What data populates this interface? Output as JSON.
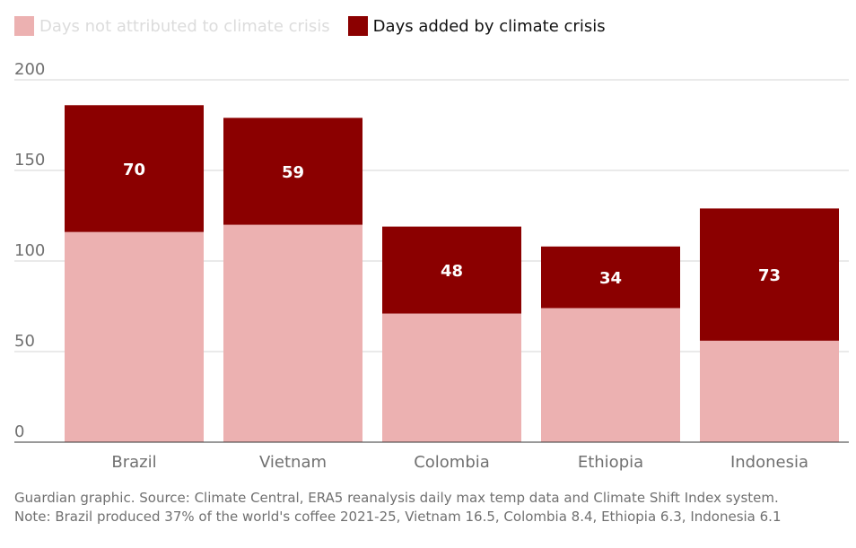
{
  "chart_data": {
    "type": "bar",
    "stacked": true,
    "categories": [
      "Brazil",
      "Vietnam",
      "Colombia",
      "Ethiopia",
      "Indonesia"
    ],
    "series": [
      {
        "name": "Days not attributed to climate crisis",
        "values": [
          116,
          120,
          71,
          74,
          56
        ],
        "color": "#ecb1b1"
      },
      {
        "name": "Days added by climate crisis",
        "values": [
          70,
          59,
          48,
          34,
          73
        ],
        "color": "#8b0000"
      }
    ],
    "data_labels": [
      "70",
      "59",
      "48",
      "34",
      "73"
    ],
    "y_ticks": [
      0,
      50,
      100,
      150,
      200
    ],
    "ylim": [
      0,
      200
    ],
    "grid": true,
    "legend_position": "top-left",
    "title": "",
    "xlabel": "",
    "ylabel": ""
  },
  "footnote": {
    "line1": "Guardian graphic. Source: Climate Central, ERA5 reanalysis daily max temp data and Climate Shift Index system.",
    "line2": "Note: Brazil produced 37% of the world's coffee 2021-25, Vietnam 16.5, Colombia 8.4, Ethiopia 6.3, Indonesia 6.1"
  }
}
